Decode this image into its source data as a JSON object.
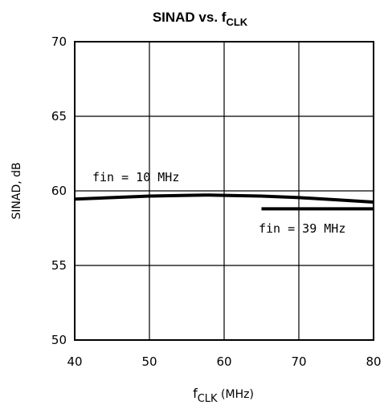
{
  "chart_data": {
    "type": "line",
    "title": {
      "main": "SINAD vs. f",
      "sub": "CLK"
    },
    "xlabel": {
      "main": "f",
      "sub": "CLK",
      "unit": " (MHz)"
    },
    "ylabel": "SINAD, dB",
    "xlim": [
      40,
      80
    ],
    "ylim": [
      50,
      70
    ],
    "xticks": [
      "40",
      "50",
      "60",
      "70",
      "80"
    ],
    "yticks": [
      "70",
      "65",
      "60",
      "55",
      "50"
    ],
    "grid": true,
    "series": [
      {
        "name": "fin = 10 MHz",
        "x": [
          40,
          45,
          50,
          55,
          58,
          60,
          65,
          70,
          75,
          80
        ],
        "y": [
          59.45,
          59.55,
          59.65,
          59.7,
          59.72,
          59.7,
          59.65,
          59.55,
          59.4,
          59.25
        ]
      },
      {
        "name": "fin = 39 MHz",
        "x": [
          65,
          70,
          75,
          80
        ],
        "y": [
          58.8,
          58.8,
          58.8,
          58.8
        ]
      }
    ]
  }
}
